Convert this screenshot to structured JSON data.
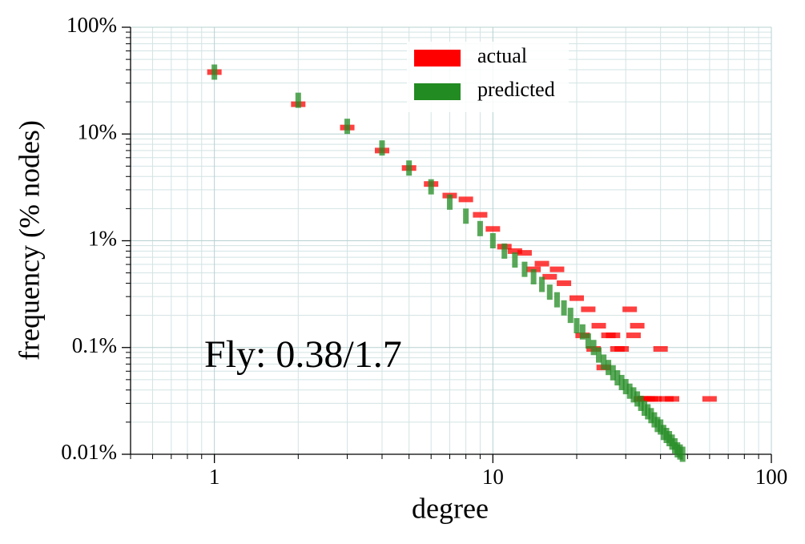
{
  "chart_data": {
    "type": "scatter",
    "x_label": "degree",
    "y_label": "frequency (% nodes)",
    "annotation": "Fly: 0.38/1.7",
    "xscale": "log",
    "yscale": "log",
    "grid": true,
    "legend": "upper center",
    "xlim": [
      0.5,
      100
    ],
    "xticks": [
      1,
      10,
      100
    ],
    "ylim": [
      0.01,
      100
    ],
    "yticks": [
      {
        "value": 0.01,
        "label": "0.01%"
      },
      {
        "value": 0.1,
        "label": "0.1%"
      },
      {
        "value": 1,
        "label": "1%"
      },
      {
        "value": 10,
        "label": "10%"
      },
      {
        "value": 100,
        "label": "100%"
      }
    ],
    "series": [
      {
        "name": "actual",
        "color": "#ff0000",
        "marker": "hline",
        "x": [
          1,
          2,
          3,
          4,
          5,
          6,
          7,
          8,
          9,
          10,
          11,
          12,
          13,
          14,
          15,
          16,
          17,
          18,
          20,
          21,
          22,
          23,
          24,
          25,
          26,
          27,
          28,
          29,
          31,
          32,
          33,
          34,
          35,
          36,
          37,
          38,
          40,
          42,
          44,
          60
        ],
        "values": [
          38,
          19,
          11.5,
          7.0,
          4.8,
          3.4,
          2.65,
          2.44,
          1.75,
          1.29,
          0.88,
          0.8,
          0.77,
          0.54,
          0.61,
          0.46,
          0.54,
          0.4,
          0.29,
          0.13,
          0.228,
          0.097,
          0.16,
          0.065,
          0.13,
          0.13,
          0.097,
          0.097,
          0.228,
          0.13,
          0.16,
          0.033,
          0.033,
          0.033,
          0.033,
          0.033,
          0.097,
          0.033,
          0.033,
          0.033
        ]
      },
      {
        "name": "predicted",
        "color": "#228b22",
        "marker": "vline",
        "x": [
          1,
          2,
          3,
          4,
          5,
          6,
          7,
          8,
          9,
          10,
          11,
          12,
          13,
          14,
          15,
          16,
          17,
          18,
          19,
          20,
          21,
          22,
          23,
          24,
          25,
          26,
          27,
          28,
          29,
          30,
          31,
          32,
          33,
          34,
          35,
          36,
          37,
          38,
          39,
          40,
          41,
          42,
          43,
          44,
          45,
          46,
          47,
          48
        ],
        "values": [
          38,
          20.7,
          11.8,
          7.4,
          4.8,
          3.2,
          2.3,
          1.7,
          1.3,
          1.0,
          0.8,
          0.66,
          0.54,
          0.46,
          0.39,
          0.33,
          0.28,
          0.235,
          0.2,
          0.16,
          0.14,
          0.115,
          0.1,
          0.085,
          0.073,
          0.065,
          0.058,
          0.052,
          0.047,
          0.043,
          0.039,
          0.036,
          0.033,
          0.03,
          0.027,
          0.025,
          0.023,
          0.021,
          0.019,
          0.018,
          0.016,
          0.015,
          0.014,
          0.013,
          0.012,
          0.011,
          0.0105,
          0.01
        ]
      }
    ]
  }
}
